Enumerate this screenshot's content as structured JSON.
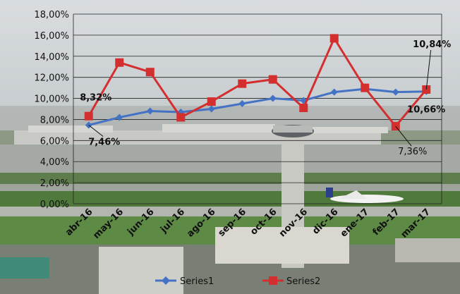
{
  "chart_data": {
    "type": "line",
    "categories": [
      "abr-16",
      "may-16",
      "jun-16",
      "jul-16",
      "ago-16",
      "sep-16",
      "oct-16",
      "nov-16",
      "dic-16",
      "ene-17",
      "feb-17",
      "mar-17"
    ],
    "series": [
      {
        "name": "Series1",
        "color": "#4472C4",
        "marker": "diamond",
        "values": [
          7.46,
          8.2,
          8.8,
          8.7,
          9.0,
          9.5,
          10.0,
          9.8,
          10.6,
          10.9,
          10.6,
          10.66
        ]
      },
      {
        "name": "Series2",
        "color": "#D32F2F",
        "marker": "square",
        "values": [
          8.32,
          13.4,
          12.5,
          8.2,
          9.7,
          11.4,
          11.8,
          9.1,
          15.7,
          11.0,
          7.36,
          10.84
        ]
      }
    ],
    "ylim": [
      0,
      18
    ],
    "yticks": [
      "0,00%",
      "2,00%",
      "4,00%",
      "6,00%",
      "8,00%",
      "10,00%",
      "12,00%",
      "14,00%",
      "16,00%",
      "18,00%"
    ],
    "grid": true,
    "legend_position": "bottom",
    "annotations": [
      {
        "text": "8,32%",
        "series": 1,
        "index": 0
      },
      {
        "text": "7,46%",
        "series": 0,
        "index": 0
      },
      {
        "text": "7,36%",
        "series": 1,
        "index": 10
      },
      {
        "text": "10,84%",
        "series": 1,
        "index": 11
      },
      {
        "text": "10,66%",
        "series": 0,
        "index": 11
      }
    ],
    "background": "airport-aerial-photo"
  }
}
